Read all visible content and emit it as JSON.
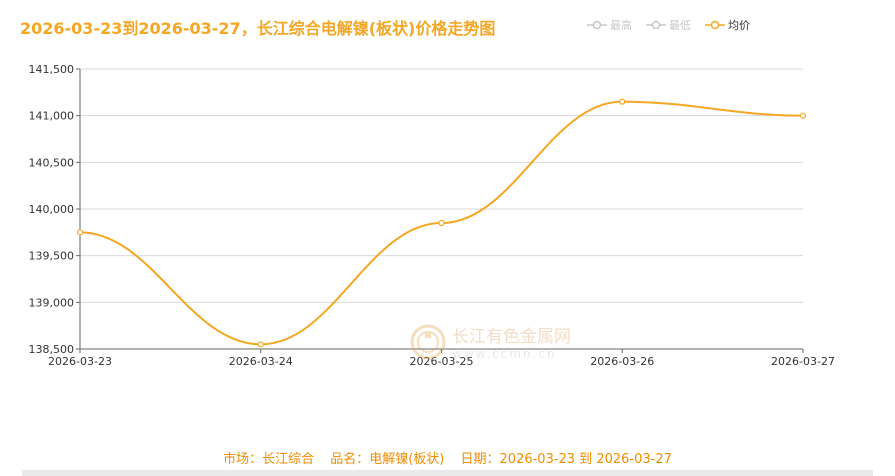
{
  "title": "2026-03-23到2026-03-27，长江综合电解镍(板状)价格走势图",
  "legend": [
    {
      "label": "最高",
      "active": false,
      "icon": "line-circle-icon"
    },
    {
      "label": "最低",
      "active": false,
      "icon": "line-circle-icon"
    },
    {
      "label": "均价",
      "active": true,
      "icon": "line-circle-icon"
    }
  ],
  "colors": {
    "accent": "#f5a623",
    "inactive": "#c8c8c8",
    "footer": "#f08c00"
  },
  "watermark": {
    "cn": "长江有色金属网",
    "en": "www.ccmn.cn"
  },
  "footer": {
    "market": "市场：长江综合",
    "product": "品名：电解镍(板状)",
    "date": "日期：2026-03-23 到 2026-03-27"
  },
  "chart_data": {
    "type": "line",
    "title": "2026-03-23到2026-03-27，长江综合电解镍(板状)价格走势图",
    "categories": [
      "2026-03-23",
      "2026-03-24",
      "2026-03-25",
      "2026-03-26",
      "2026-03-27"
    ],
    "series": [
      {
        "name": "均价",
        "values": [
          139750,
          138550,
          139850,
          141150,
          141000
        ]
      }
    ],
    "ylim": [
      138500,
      141500
    ],
    "yticks": [
      138500,
      139000,
      139500,
      140000,
      140500,
      141000,
      141500
    ],
    "ytick_labels": [
      "138,500",
      "139,000",
      "139,500",
      "140,000",
      "140,500",
      "141,000",
      "141,500"
    ],
    "grid": true,
    "smooth": true,
    "legend_position": "top-right"
  }
}
